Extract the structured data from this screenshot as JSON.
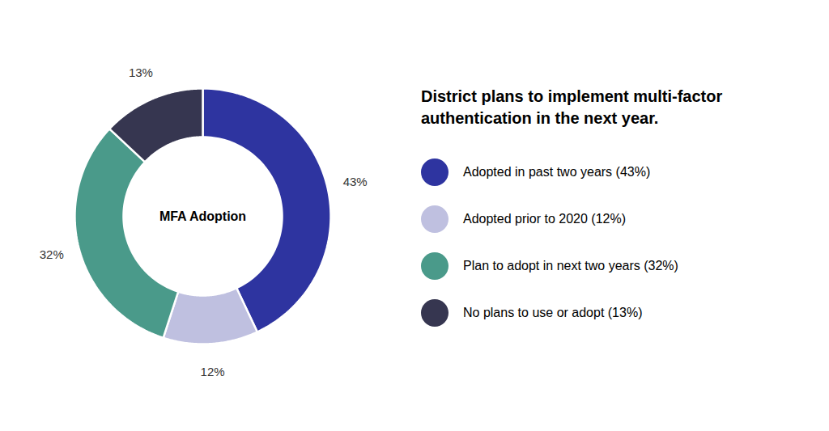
{
  "chart_data": {
    "type": "donut",
    "title": "District plans to implement multi-factor\nauthentication in the next year.",
    "center_label": "MFA Adoption",
    "categories": [
      "Adopted in past two years (43%)",
      "Adopted prior to 2020 (12%)",
      "Plan to adopt in next two years (32%)",
      "No plans to use or adopt (13%)"
    ],
    "values": [
      43,
      12,
      32,
      13
    ],
    "value_labels": [
      "43%",
      "12%",
      "32%",
      "13%"
    ],
    "data_labels": true,
    "colors": [
      "#2e34a0",
      "#bfc0e0",
      "#4a9a8a",
      "#363650"
    ],
    "legend": "right"
  }
}
